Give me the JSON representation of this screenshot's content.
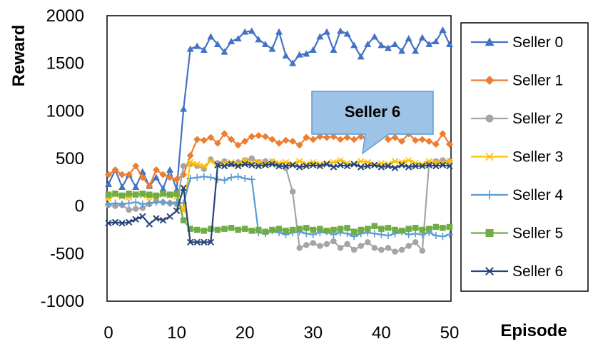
{
  "chart_data": {
    "type": "line",
    "xlabel": "Episode",
    "ylabel": "Reward",
    "xlim": [
      0,
      50
    ],
    "ylim": [
      -1000,
      2000
    ],
    "x_ticks": [
      "0",
      "10",
      "20",
      "30",
      "40",
      "50"
    ],
    "y_ticks": [
      "-1000",
      "-500",
      "0",
      "500",
      "1000",
      "1500",
      "2000"
    ],
    "legend_position": "right",
    "grid": false,
    "annotation": "Seller 6",
    "x": [
      0,
      1,
      2,
      3,
      4,
      5,
      6,
      7,
      8,
      9,
      10,
      11,
      12,
      13,
      14,
      15,
      16,
      17,
      18,
      19,
      20,
      21,
      22,
      23,
      24,
      25,
      26,
      27,
      28,
      29,
      30,
      31,
      32,
      33,
      34,
      35,
      36,
      37,
      38,
      39,
      40,
      41,
      42,
      43,
      44,
      45,
      46,
      47,
      48,
      49,
      50
    ],
    "series": [
      {
        "name": "Seller 0",
        "color": "#4472C4",
        "marker": "triangle",
        "values": [
          230,
          380,
          200,
          330,
          200,
          360,
          210,
          300,
          180,
          380,
          170,
          1020,
          1650,
          1680,
          1640,
          1780,
          1700,
          1620,
          1730,
          1760,
          1830,
          1840,
          1750,
          1700,
          1650,
          1830,
          1580,
          1500,
          1590,
          1600,
          1640,
          1780,
          1830,
          1640,
          1840,
          1810,
          1690,
          1570,
          1700,
          1780,
          1690,
          1660,
          1700,
          1630,
          1760,
          1630,
          1770,
          1700,
          1730,
          1850,
          1700
        ]
      },
      {
        "name": "Seller 1",
        "color": "#ED7D31",
        "marker": "diamond",
        "values": [
          330,
          380,
          330,
          330,
          420,
          300,
          210,
          380,
          330,
          300,
          280,
          330,
          530,
          700,
          690,
          720,
          660,
          760,
          700,
          640,
          680,
          730,
          740,
          730,
          700,
          660,
          690,
          680,
          640,
          720,
          700,
          730,
          720,
          730,
          700,
          720,
          700,
          730,
          690,
          750,
          800,
          700,
          720,
          680,
          760,
          690,
          700,
          680,
          650,
          760,
          650
        ]
      },
      {
        "name": "Seller 2",
        "color": "#A5A5A5",
        "marker": "circle",
        "values": [
          10,
          0,
          10,
          -40,
          -30,
          -20,
          20,
          50,
          40,
          30,
          20,
          420,
          440,
          420,
          390,
          490,
          450,
          470,
          440,
          460,
          480,
          500,
          460,
          470,
          460,
          430,
          400,
          150,
          -440,
          -410,
          -390,
          -420,
          -400,
          -370,
          -440,
          -400,
          -460,
          -420,
          -380,
          -440,
          -460,
          -440,
          -480,
          -460,
          -420,
          -380,
          -470,
          450,
          470,
          480,
          470
        ]
      },
      {
        "name": "Seller 3",
        "color": "#FFC000",
        "marker": "asterisk",
        "values": [
          80,
          120,
          100,
          90,
          130,
          110,
          90,
          100,
          120,
          110,
          100,
          -50,
          460,
          440,
          420,
          470,
          430,
          450,
          460,
          440,
          480,
          450,
          460,
          440,
          470,
          450,
          460,
          440,
          470,
          440,
          460,
          440,
          450,
          460,
          480,
          450,
          440,
          470,
          460,
          430,
          450,
          440,
          470,
          460,
          480,
          450,
          440,
          470,
          460,
          450,
          470
        ]
      },
      {
        "name": "Seller 4",
        "color": "#5B9BD5",
        "marker": "plus",
        "values": [
          20,
          30,
          20,
          30,
          40,
          20,
          30,
          40,
          40,
          30,
          40,
          30,
          290,
          300,
          310,
          300,
          280,
          270,
          300,
          310,
          290,
          280,
          -280,
          -290,
          -260,
          -280,
          -300,
          -280,
          -270,
          -290,
          -300,
          -280,
          -270,
          -300,
          -280,
          -290,
          -320,
          -290,
          -280,
          -290,
          -300,
          -310,
          -290,
          -270,
          -300,
          -290,
          -300,
          -280,
          -310,
          -320,
          -300
        ]
      },
      {
        "name": "Seller 5",
        "color": "#70AD47",
        "marker": "square",
        "values": [
          120,
          130,
          110,
          130,
          120,
          130,
          120,
          110,
          130,
          120,
          130,
          -150,
          -240,
          -250,
          -260,
          -240,
          -250,
          -240,
          -230,
          -250,
          -240,
          -260,
          -250,
          -270,
          -250,
          -240,
          -260,
          -250,
          -240,
          -230,
          -250,
          -240,
          -260,
          -250,
          -240,
          -230,
          -270,
          -250,
          -240,
          -210,
          -240,
          -230,
          -250,
          -260,
          -240,
          -230,
          -250,
          -240,
          -220,
          -230,
          -220
        ]
      },
      {
        "name": "Seller 6",
        "color": "#264478",
        "marker": "x",
        "values": [
          -180,
          -170,
          -180,
          -170,
          -140,
          -110,
          -190,
          -130,
          -150,
          -110,
          -50,
          190,
          -380,
          -380,
          -380,
          -380,
          430,
          420,
          440,
          420,
          440,
          430,
          420,
          430,
          440,
          420,
          420,
          430,
          410,
          420,
          430,
          420,
          440,
          410,
          430,
          420,
          440,
          410,
          420,
          430,
          410,
          420,
          400,
          430,
          410,
          420,
          420,
          430,
          420,
          430,
          420
        ]
      }
    ]
  }
}
